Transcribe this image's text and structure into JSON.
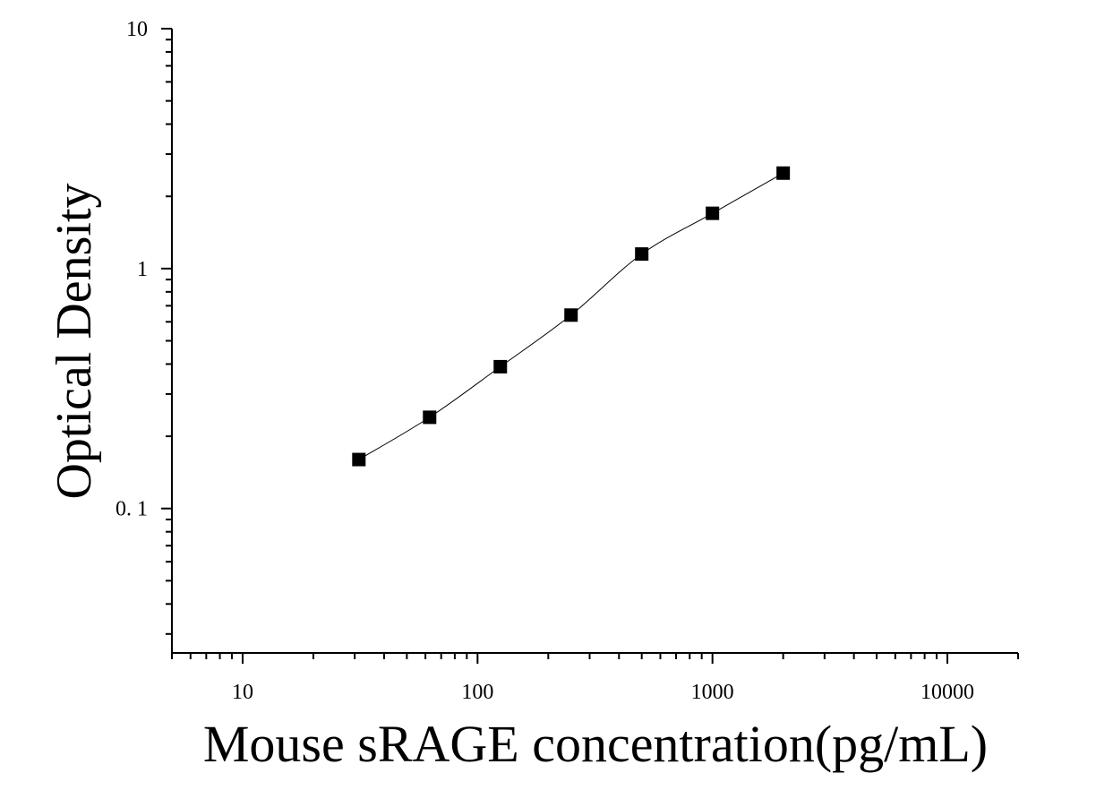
{
  "chart_data": {
    "type": "scatter",
    "title": "",
    "xlabel": "Mouse sRAGE concentration(pg/mL)",
    "ylabel": "Optical Density",
    "xscale": "log",
    "yscale": "log",
    "xlim": [
      5,
      20000
    ],
    "ylim": [
      0.025,
      10
    ],
    "xticks": [
      {
        "value": 10,
        "label": "10"
      },
      {
        "value": 100,
        "label": "100"
      },
      {
        "value": 1000,
        "label": "1000"
      },
      {
        "value": 10000,
        "label": "10000"
      }
    ],
    "yticks": [
      {
        "value": 0.1,
        "label": "0. 1"
      },
      {
        "value": 1,
        "label": "1"
      },
      {
        "value": 10,
        "label": "10"
      }
    ],
    "grid": false,
    "legend": "none",
    "marker": "square",
    "series": [
      {
        "x": [
          31.25,
          62.5,
          125,
          250,
          500,
          1000,
          2000
        ],
        "y": [
          0.16,
          0.24,
          0.39,
          0.64,
          1.15,
          1.7,
          2.5
        ]
      }
    ],
    "fit_curve": true,
    "colors": {
      "marker": "#000000",
      "curve": "#000000",
      "axis": "#000000"
    }
  }
}
